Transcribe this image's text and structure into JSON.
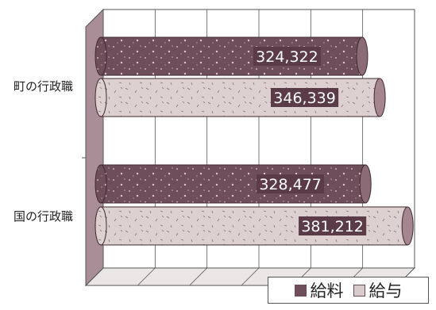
{
  "chart_data": {
    "type": "bar",
    "orientation": "horizontal",
    "style": "3d-cylinder",
    "categories": [
      "町の行政職",
      "国の行政職"
    ],
    "series": [
      {
        "name": "給料",
        "values": [
          324322,
          328477
        ],
        "color": "#6e4e5b"
      },
      {
        "name": "給与",
        "values": [
          346339,
          381212
        ],
        "color": "#d8cbcb"
      }
    ],
    "value_labels": {
      "0": [
        "324,322",
        "328,477"
      ],
      "1": [
        "346,339",
        "381,212"
      ]
    },
    "xlim": [
      0,
      390000
    ],
    "grid": true,
    "legend_position": "bottom-right"
  }
}
